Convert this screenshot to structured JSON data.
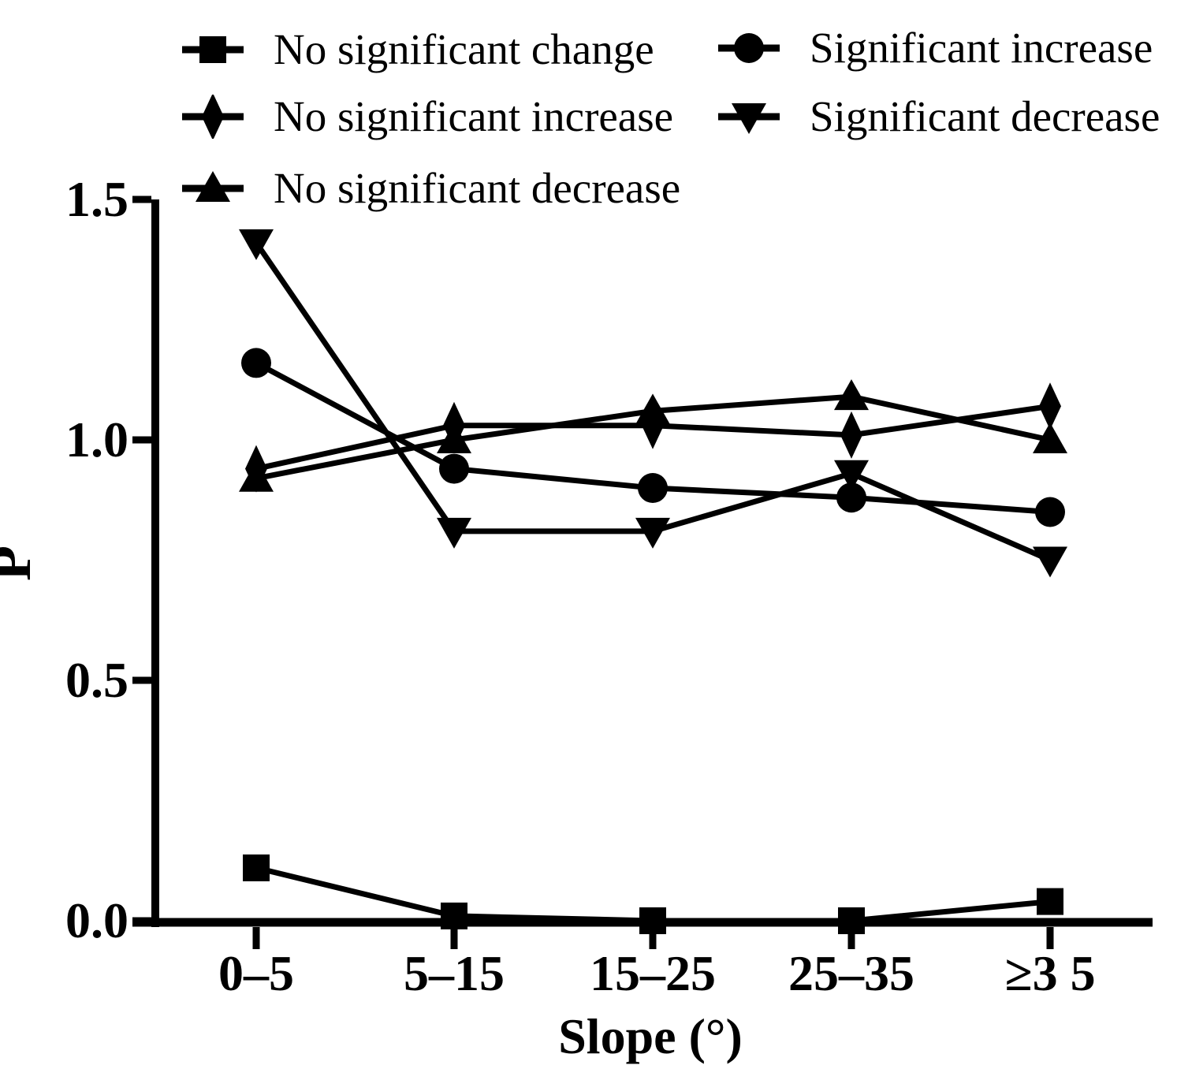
{
  "figure": {
    "background": "#ffffff",
    "ink": "#000000"
  },
  "chart_data": {
    "type": "line",
    "title": "",
    "xlabel": "Slope (°)",
    "ylabel": "P",
    "categories": [
      "0–5",
      "5–15",
      "15–25",
      "25–35",
      "≥3 5"
    ],
    "yticks": [
      "0.0",
      "0.5",
      "1.0",
      "1.5"
    ],
    "ytick_values": [
      0,
      0.5,
      1.0,
      1.5
    ],
    "ylim": [
      0,
      1.5
    ],
    "grid": false,
    "legend_position": "top",
    "color": "#000000",
    "series": [
      {
        "name": "No significant change",
        "marker": "square",
        "values": [
          0.11,
          0.01,
          0.0,
          0.0,
          0.04
        ]
      },
      {
        "name": "Significant increase",
        "marker": "circle",
        "values": [
          1.16,
          0.94,
          0.9,
          0.88,
          0.85
        ]
      },
      {
        "name": "No significant increase",
        "marker": "diamond",
        "values": [
          0.94,
          1.03,
          1.03,
          1.01,
          1.07
        ]
      },
      {
        "name": "Significant decrease",
        "marker": "triangle-down",
        "values": [
          1.41,
          0.81,
          0.81,
          0.93,
          0.75
        ]
      },
      {
        "name": "No significant decrease",
        "marker": "triangle-up",
        "values": [
          0.92,
          1.0,
          1.06,
          1.09,
          1.0
        ]
      }
    ]
  }
}
